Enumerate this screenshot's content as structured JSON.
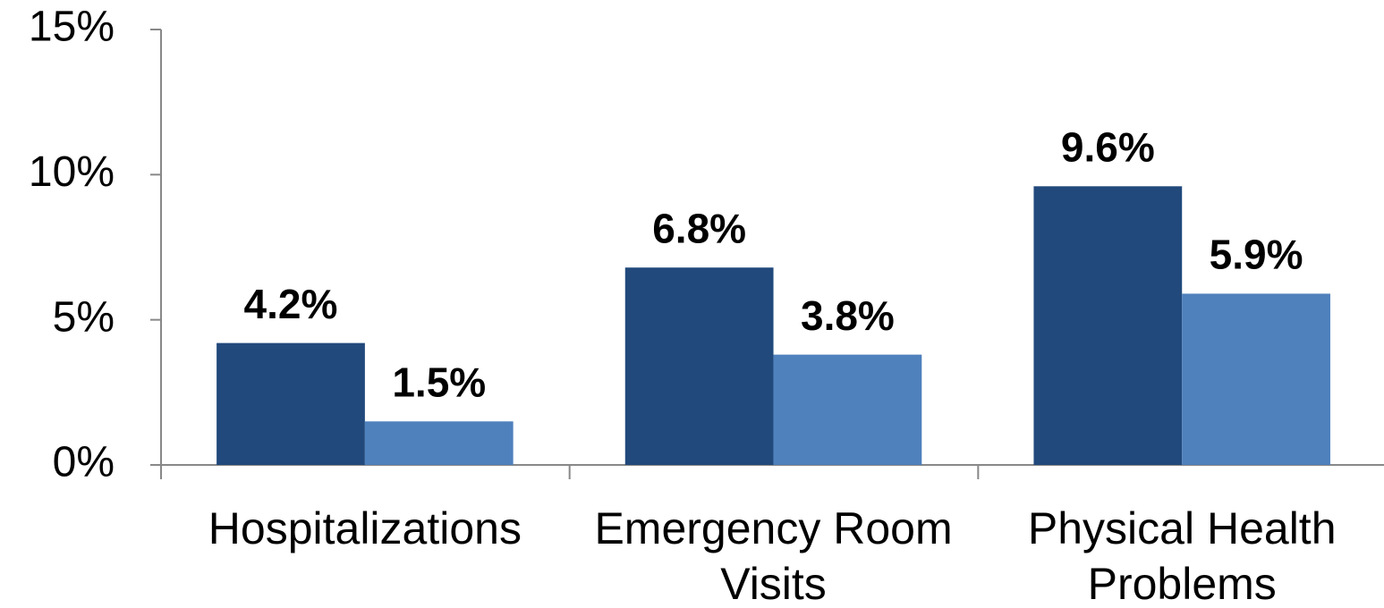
{
  "chart_data": {
    "type": "bar",
    "categories": [
      "Hospitalizations",
      "Emergency Room Visits",
      "Physical Health Problems"
    ],
    "series": [
      {
        "color": "#21497c",
        "values": [
          4.2,
          6.8,
          9.6
        ],
        "value_labels": [
          "4.2%",
          "6.8%",
          "9.6%"
        ]
      },
      {
        "color": "#4f81bd",
        "values": [
          1.5,
          3.8,
          5.9
        ],
        "value_labels": [
          "1.5%",
          "3.8%",
          "5.9%"
        ]
      }
    ],
    "ylim": [
      0,
      15
    ],
    "yticks": [
      {
        "value": 0,
        "label": "0%"
      },
      {
        "value": 5,
        "label": "5%"
      },
      {
        "value": 10,
        "label": "10%"
      },
      {
        "value": 15,
        "label": "15%"
      }
    ],
    "grid": false
  }
}
